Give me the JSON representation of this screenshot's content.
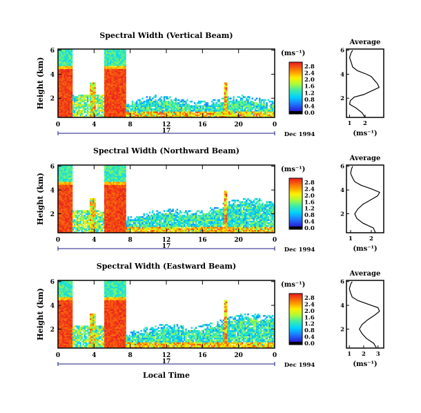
{
  "chart_data": [
    {
      "type": "heatmap",
      "title": "Spectral Width (Vertical Beam)",
      "ylabel": "Height (km)",
      "y_ticks": [
        2,
        4,
        6
      ],
      "ylim": [
        0.4,
        6.1
      ],
      "x_ticks": [
        "0",
        "4",
        "8",
        "12",
        "16",
        "20",
        "0"
      ],
      "xlim": [
        0,
        24
      ],
      "day_marker": "17",
      "date_label": "Dec 1994",
      "colorbar": {
        "unit": "(ms⁻¹)",
        "ticks": [
          "0.0",
          "0.4",
          "0.8",
          "1.2",
          "1.6",
          "2.0",
          "2.4",
          "2.8"
        ]
      },
      "average": {
        "title": "Average",
        "xlabel": "(ms⁻¹)",
        "x_ticks": [
          "1",
          "2"
        ],
        "xlim": [
          0.8,
          3.2
        ],
        "y_ticks": [
          2,
          4,
          6
        ],
        "ylim": [
          0.4,
          6.1
        ],
        "profile": [
          [
            0.4,
            2.0
          ],
          [
            0.8,
            1.8
          ],
          [
            1.2,
            1.4
          ],
          [
            1.5,
            1.0
          ],
          [
            1.8,
            1.05
          ],
          [
            2.1,
            1.3
          ],
          [
            2.3,
            1.9
          ],
          [
            2.6,
            2.4
          ],
          [
            2.9,
            2.9
          ],
          [
            3.2,
            2.8
          ],
          [
            3.5,
            2.6
          ],
          [
            3.8,
            2.4
          ],
          [
            4.0,
            2.1
          ],
          [
            4.3,
            1.5
          ],
          [
            4.6,
            1.2
          ],
          [
            5.0,
            1.1
          ],
          [
            5.4,
            1.0
          ],
          [
            5.8,
            1.1
          ],
          [
            6.0,
            1.2
          ]
        ]
      }
    },
    {
      "type": "heatmap",
      "title": "Spectral Width (Northward Beam)",
      "ylabel": "Height (km)",
      "y_ticks": [
        2,
        4,
        6
      ],
      "ylim": [
        0.4,
        6.1
      ],
      "x_ticks": [
        "0",
        "4",
        "8",
        "12",
        "16",
        "20",
        "0"
      ],
      "xlim": [
        0,
        24
      ],
      "day_marker": "17",
      "date_label": "Dec 1994",
      "colorbar": {
        "unit": "(ms⁻¹)",
        "ticks": [
          "0.0",
          "0.4",
          "0.8",
          "1.2",
          "1.6",
          "2.0",
          "2.4",
          "2.8"
        ]
      },
      "average": {
        "title": "Average",
        "xlabel": "(ms⁻¹)",
        "x_ticks": [
          "1",
          "2"
        ],
        "xlim": [
          0.8,
          2.6
        ],
        "y_ticks": [
          2,
          4,
          6
        ],
        "ylim": [
          0.4,
          6.1
        ],
        "profile": [
          [
            0.4,
            2.2
          ],
          [
            0.8,
            2.1
          ],
          [
            1.2,
            1.6
          ],
          [
            1.6,
            1.3
          ],
          [
            2.0,
            1.2
          ],
          [
            2.4,
            1.35
          ],
          [
            2.8,
            1.6
          ],
          [
            3.2,
            2.0
          ],
          [
            3.5,
            2.3
          ],
          [
            3.8,
            2.4
          ],
          [
            4.1,
            2.0
          ],
          [
            4.4,
            1.5
          ],
          [
            4.7,
            1.2
          ],
          [
            5.0,
            1.1
          ],
          [
            5.4,
            1.0
          ],
          [
            5.8,
            1.05
          ],
          [
            6.0,
            1.1
          ]
        ]
      }
    },
    {
      "type": "heatmap",
      "title": "Spectral Width (Eastward Beam)",
      "ylabel": "Height (km)",
      "y_ticks": [
        2,
        4,
        6
      ],
      "ylim": [
        0.4,
        6.1
      ],
      "x_ticks": [
        "0",
        "4",
        "8",
        "12",
        "16",
        "20",
        "0"
      ],
      "xlim": [
        0,
        24
      ],
      "day_marker": "17",
      "date_label": "Dec 1994",
      "xlabel": "Local Time",
      "colorbar": {
        "unit": "(ms⁻¹)",
        "ticks": [
          "0.0",
          "0.4",
          "0.8",
          "1.2",
          "1.6",
          "2.0",
          "2.4",
          "2.8"
        ]
      },
      "average": {
        "title": "Average",
        "xlabel": "(ms⁻¹)",
        "x_ticks": [
          "1",
          "2",
          "3"
        ],
        "xlim": [
          0.8,
          3.4
        ],
        "y_ticks": [
          2,
          4,
          6
        ],
        "ylim": [
          0.4,
          6.1
        ],
        "profile": [
          [
            0.4,
            2.9
          ],
          [
            0.8,
            2.7
          ],
          [
            1.2,
            2.2
          ],
          [
            1.6,
            1.9
          ],
          [
            2.0,
            1.7
          ],
          [
            2.4,
            1.9
          ],
          [
            2.8,
            2.3
          ],
          [
            3.2,
            2.8
          ],
          [
            3.5,
            3.1
          ],
          [
            3.8,
            3.0
          ],
          [
            4.1,
            2.3
          ],
          [
            4.4,
            1.6
          ],
          [
            4.7,
            1.2
          ],
          [
            5.0,
            1.1
          ],
          [
            5.4,
            1.0
          ],
          [
            5.8,
            1.1
          ],
          [
            6.0,
            1.2
          ]
        ]
      }
    }
  ]
}
